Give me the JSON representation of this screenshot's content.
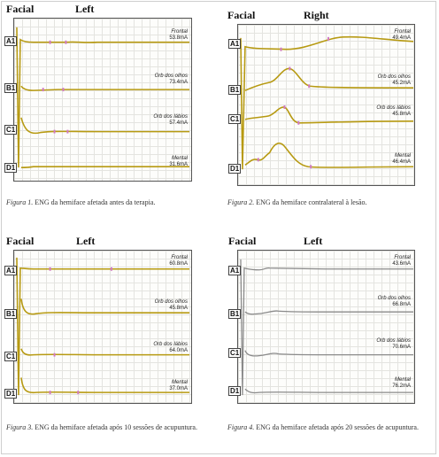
{
  "colors": {
    "trace_color": "#b79a12",
    "trace_gray": "#8a8a8a",
    "marker": "#d27ac4"
  },
  "panels": [
    {
      "facial": "Facial",
      "side": "Left",
      "figure": "Figura 1.",
      "caption": " ENG da hemiface afetada antes da terapia.",
      "color": "yellow",
      "channels": [
        {
          "id": "A1",
          "name": "Frontal",
          "value": "53.8mA"
        },
        {
          "id": "B1",
          "name": "Orb dos olhos",
          "value": "73.4mA"
        },
        {
          "id": "C1",
          "name": "Orb dos lábios",
          "value": "57.4mA"
        },
        {
          "id": "D1",
          "name": "Mental",
          "value": "31.6mA"
        }
      ]
    },
    {
      "facial": "Facial",
      "side": "Right",
      "figure": "Figura 2.",
      "caption": " ENG da hemiface contralateral à lesão.",
      "color": "yellow",
      "channels": [
        {
          "id": "A1",
          "name": "Frontal",
          "value": "49.4mA"
        },
        {
          "id": "B1",
          "name": "Orb dos olhos",
          "value": "45.2mA"
        },
        {
          "id": "C1",
          "name": "Orb dos lábios",
          "value": "45.8mA"
        },
        {
          "id": "D1",
          "name": "Mental",
          "value": "46.4mA"
        }
      ]
    },
    {
      "facial": "Facial",
      "side": "Left",
      "figure": "Figura 3.",
      "caption": " ENG da hemiface afetada após 10 sessões de acupuntura.",
      "color": "yellow",
      "channels": [
        {
          "id": "A1",
          "name": "Frontal",
          "value": "60.8mA"
        },
        {
          "id": "B1",
          "name": "Orb dos olhos",
          "value": "45.8mA"
        },
        {
          "id": "C1",
          "name": "Orb dos lábios",
          "value": "64.0mA"
        },
        {
          "id": "D1",
          "name": "Mental",
          "value": "37.0mA"
        }
      ]
    },
    {
      "facial": "Facial",
      "side": "Left",
      "figure": "Figura 4.",
      "caption": " ENG da hemiface afetada após 20 sessões de acupuntura.",
      "color": "gray",
      "channels": [
        {
          "id": "A1",
          "name": "Frontal",
          "value": "43.6mA"
        },
        {
          "id": "B1",
          "name": "Orb dos olhos",
          "value": "66.8mA"
        },
        {
          "id": "C1",
          "name": "Orb dos lábios",
          "value": "70.6mA"
        },
        {
          "id": "D1",
          "name": "Mental",
          "value": "76.2mA"
        }
      ]
    }
  ]
}
